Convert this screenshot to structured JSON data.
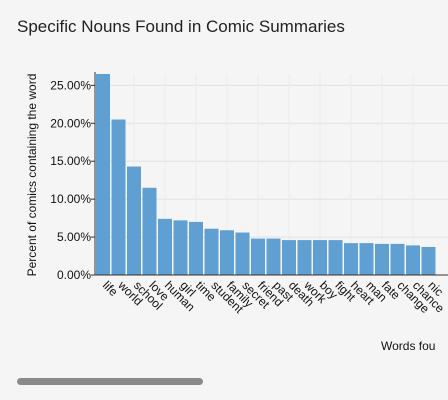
{
  "chart_data": {
    "type": "bar",
    "title": "Specific Nouns Found in Comic Summaries",
    "ylabel": "Percent of comics containing the word",
    "xlabel": "Words fou",
    "ylim": [
      0,
      26.5
    ],
    "yticks": [
      0,
      5,
      10,
      15,
      20,
      25
    ],
    "ytick_labels": [
      "0.00%",
      "5.00%",
      "10.00%",
      "15.00%",
      "20.00%",
      "25.00%"
    ],
    "grid": true,
    "bar_color": "#5f9fd1",
    "categories": [
      "life",
      "world",
      "school",
      "love",
      "human",
      "girl",
      "time",
      "student",
      "family",
      "secret",
      "friend",
      "past",
      "death",
      "work",
      "boy",
      "fight",
      "heart",
      "man",
      "fate",
      "change",
      "chance",
      "nic"
    ],
    "values": [
      26.5,
      20.5,
      14.3,
      11.5,
      7.4,
      7.2,
      7.0,
      6.1,
      5.9,
      5.6,
      4.8,
      4.8,
      4.6,
      4.6,
      4.6,
      4.6,
      4.2,
      4.2,
      4.1,
      4.1,
      3.9,
      3.7
    ]
  },
  "scrollbar_color": "#8a8a8a"
}
